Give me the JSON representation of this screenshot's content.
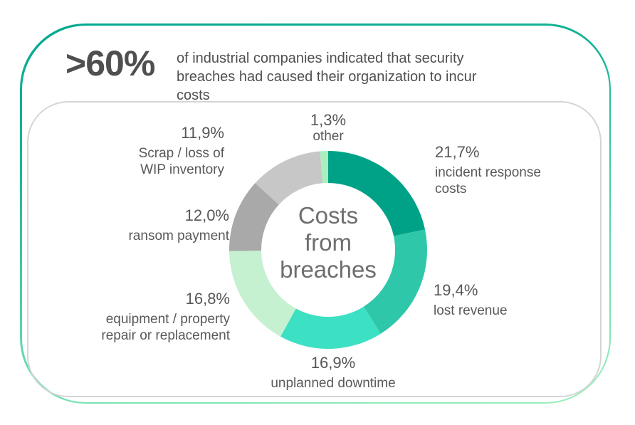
{
  "header": {
    "stat": ">60%",
    "description": "of industrial companies indicated that security breaches had caused their organization to incur costs"
  },
  "chart_data": {
    "type": "pie",
    "variant": "donut",
    "title": "Costs from breaches",
    "center_label": {
      "line1": "Costs",
      "line2": "from",
      "line3": "breaches"
    },
    "start_angle_deg": 0,
    "direction": "clockwise",
    "unit": "%",
    "decimal_separator": ",",
    "segments": [
      {
        "id": "incident-response-costs",
        "label": "incident response costs",
        "value": 21.7,
        "display_value": "21,7%",
        "color": "#00a287"
      },
      {
        "id": "lost-revenue",
        "label": "lost revenue",
        "value": 19.4,
        "display_value": "19,4%",
        "color": "#2fc7aa"
      },
      {
        "id": "unplanned-downtime",
        "label": "unplanned downtime",
        "value": 16.9,
        "display_value": "16,9%",
        "color": "#3ce0c3"
      },
      {
        "id": "equipment-property-repair-or-replacement",
        "label": "equipment / property repair or replacement",
        "value": 16.8,
        "display_value": "16,8%",
        "color": "#c5f1d0"
      },
      {
        "id": "ransom-payment",
        "label": "ransom payment",
        "value": 12.0,
        "display_value": "12,0%",
        "color": "#a9a9a9"
      },
      {
        "id": "scrap-loss-of-wip-inventory",
        "label": "Scrap / loss of WIP inventory",
        "value": 11.9,
        "display_value": "11,9%",
        "color": "#c7c7c7"
      },
      {
        "id": "other",
        "label": "other",
        "value": 1.3,
        "display_value": "1,3%",
        "color": "#a9efc0"
      }
    ]
  },
  "callouts": {
    "incident": {
      "line1": "incident response",
      "line2": "costs"
    },
    "lost_revenue": {
      "line1": "lost revenue"
    },
    "unplanned": {
      "line1": "unplanned downtime"
    },
    "equipment": {
      "line1": "equipment / property",
      "line2": "repair or replacement"
    },
    "ransom": {
      "line1": "ransom payment"
    },
    "scrap": {
      "line1": "Scrap / loss of",
      "line2": "WIP inventory"
    },
    "other": {
      "line1": "other"
    }
  },
  "colors": {
    "border_gradient_top": "#00a98e",
    "border_gradient_bottom": "#9ff0c0",
    "inner_border": "#d5d5d5",
    "heading_text": "#4f4f4f",
    "label_text": "#595959",
    "center_text": "#6e6e6e"
  }
}
